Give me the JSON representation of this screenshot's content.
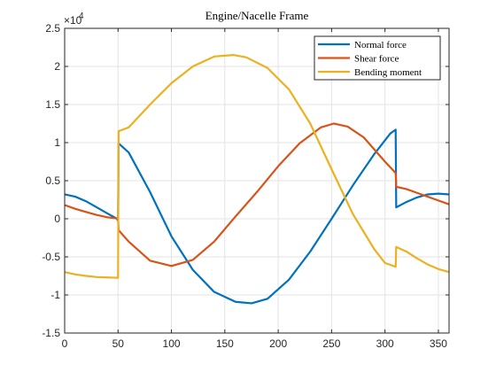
{
  "chart_data": {
    "type": "line",
    "title": "Engine/Nacelle Frame",
    "xlabel": "",
    "ylabel": "",
    "xlim": [
      0,
      360
    ],
    "ylim": [
      -15000,
      25000
    ],
    "x_ticks": [
      0,
      50,
      100,
      150,
      200,
      250,
      300,
      350
    ],
    "y_ticks": [
      -15000,
      -10000,
      -5000,
      0,
      5000,
      10000,
      15000,
      20000,
      25000
    ],
    "y_tick_labels": [
      "-1.5",
      "-1",
      "-0.5",
      "0",
      "0.5",
      "1",
      "1.5",
      "2",
      "2.5"
    ],
    "y_exponent_label": "×10",
    "y_exponent_power": "4",
    "grid": true,
    "legend_position": "top-right",
    "series": [
      {
        "name": "Normal force",
        "color": "#0072BD",
        "points": [
          [
            0,
            3200
          ],
          [
            10,
            2900
          ],
          [
            20,
            2300
          ],
          [
            30,
            1500
          ],
          [
            40,
            700
          ],
          [
            49,
            0
          ],
          [
            50,
            -300
          ],
          [
            50.5,
            9900
          ],
          [
            60,
            8700
          ],
          [
            80,
            3500
          ],
          [
            100,
            -2300
          ],
          [
            120,
            -6700
          ],
          [
            140,
            -9600
          ],
          [
            160,
            -10900
          ],
          [
            175,
            -11100
          ],
          [
            190,
            -10500
          ],
          [
            210,
            -8000
          ],
          [
            230,
            -4300
          ],
          [
            250,
            0
          ],
          [
            270,
            4400
          ],
          [
            290,
            8500
          ],
          [
            305,
            11200
          ],
          [
            310,
            11700
          ],
          [
            310.5,
            1500
          ],
          [
            320,
            2200
          ],
          [
            330,
            2800
          ],
          [
            340,
            3200
          ],
          [
            350,
            3300
          ],
          [
            360,
            3200
          ]
        ]
      },
      {
        "name": "Shear force",
        "color": "#D95319",
        "points": [
          [
            0,
            1800
          ],
          [
            10,
            1300
          ],
          [
            20,
            900
          ],
          [
            30,
            500
          ],
          [
            40,
            200
          ],
          [
            49,
            50
          ],
          [
            50,
            0
          ],
          [
            50.5,
            -1500
          ],
          [
            60,
            -3000
          ],
          [
            80,
            -5500
          ],
          [
            100,
            -6200
          ],
          [
            120,
            -5400
          ],
          [
            140,
            -3000
          ],
          [
            160,
            300
          ],
          [
            180,
            3500
          ],
          [
            200,
            6900
          ],
          [
            220,
            9900
          ],
          [
            240,
            12000
          ],
          [
            252,
            12500
          ],
          [
            265,
            12100
          ],
          [
            280,
            10700
          ],
          [
            300,
            7500
          ],
          [
            310,
            6000
          ],
          [
            310.5,
            4200
          ],
          [
            320,
            3900
          ],
          [
            330,
            3400
          ],
          [
            340,
            2900
          ],
          [
            350,
            2400
          ],
          [
            360,
            1900
          ]
        ]
      },
      {
        "name": "Bending moment",
        "color": "#EDB120",
        "points": [
          [
            0,
            -7000
          ],
          [
            10,
            -7300
          ],
          [
            20,
            -7500
          ],
          [
            30,
            -7650
          ],
          [
            40,
            -7700
          ],
          [
            50,
            -7750
          ],
          [
            50.5,
            11500
          ],
          [
            60,
            12000
          ],
          [
            80,
            15000
          ],
          [
            100,
            17800
          ],
          [
            120,
            20000
          ],
          [
            140,
            21300
          ],
          [
            158,
            21500
          ],
          [
            170,
            21200
          ],
          [
            190,
            19800
          ],
          [
            210,
            17000
          ],
          [
            230,
            12500
          ],
          [
            250,
            6500
          ],
          [
            270,
            600
          ],
          [
            290,
            -4000
          ],
          [
            300,
            -5800
          ],
          [
            310,
            -6300
          ],
          [
            310.5,
            -3700
          ],
          [
            320,
            -4300
          ],
          [
            330,
            -5200
          ],
          [
            340,
            -6000
          ],
          [
            350,
            -6600
          ],
          [
            360,
            -7000
          ]
        ]
      }
    ]
  }
}
